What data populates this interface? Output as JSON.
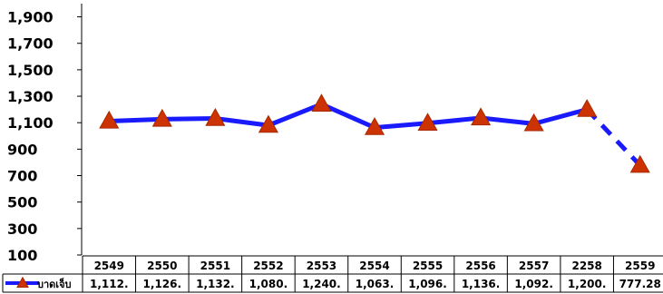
{
  "chart_data": {
    "type": "line",
    "title": "",
    "xlabel": "",
    "ylabel": "",
    "categories": [
      "2549",
      "2550",
      "2551",
      "2552",
      "2553",
      "2554",
      "2555",
      "2556",
      "2557",
      "2258",
      "2559"
    ],
    "series": [
      {
        "name": "บาดเจ็บ",
        "values": [
          1112,
          1126,
          1132,
          1080,
          1240,
          1063,
          1096,
          1136,
          1092,
          1200,
          777.28
        ],
        "value_labels": [
          "1,112.",
          "1,126.",
          "1,132.",
          "1,080.",
          "1,240.",
          "1,063.",
          "1,096.",
          "1,136.",
          "1,092.",
          "1,200.",
          "777.28"
        ],
        "color": "#1a1aff",
        "marker_color": "#cc3300",
        "marker": "triangle",
        "dashed_last_segment": true
      }
    ],
    "ylim": [
      100,
      2000
    ],
    "yticks": [
      100,
      300,
      500,
      700,
      900,
      1100,
      1300,
      1500,
      1700,
      1900
    ],
    "ytick_labels": [
      "100",
      "300",
      "500",
      "700",
      "900",
      "1,100",
      "1,300",
      "1,500",
      "1,700",
      "1,900"
    ],
    "grid": false,
    "legend": "data-table-left",
    "data_table": true
  }
}
